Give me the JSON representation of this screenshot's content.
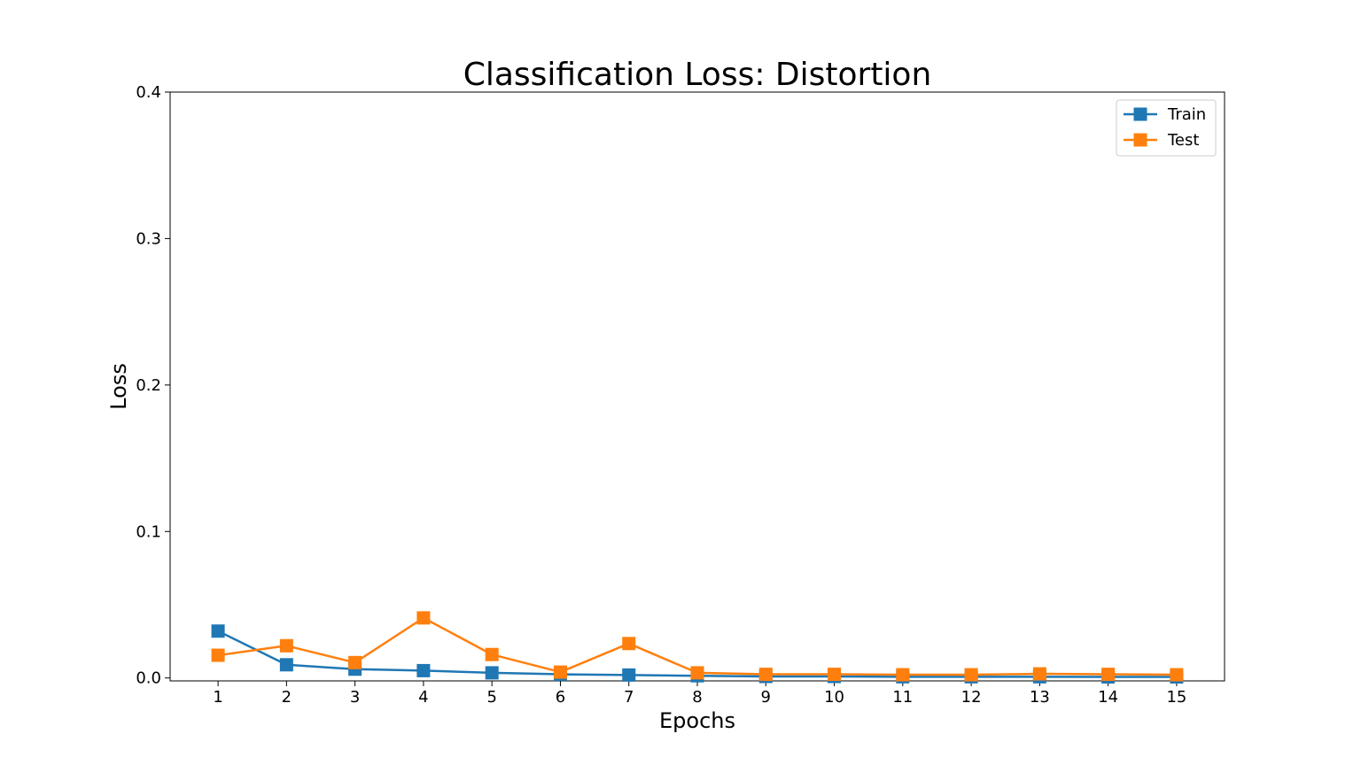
{
  "chart_data": {
    "type": "line",
    "title": "Classification Loss: Distortion",
    "xlabel": "Epochs",
    "ylabel": "Loss",
    "x": [
      1,
      2,
      3,
      4,
      5,
      6,
      7,
      8,
      9,
      10,
      11,
      12,
      13,
      14,
      15
    ],
    "xlim": [
      0.3,
      15.7
    ],
    "ylim": [
      -0.002,
      0.4
    ],
    "yticks": [
      0.0,
      0.1,
      0.2,
      0.3,
      0.4
    ],
    "ytick_labels": [
      "0.0",
      "0.1",
      "0.2",
      "0.3",
      "0.4"
    ],
    "grid": false,
    "legend_position": "top-right",
    "marker": "square",
    "series": [
      {
        "name": "Train",
        "color": "#1f77b4",
        "values": [
          0.032,
          0.009,
          0.006,
          0.005,
          0.0035,
          0.0025,
          0.002,
          0.0015,
          0.001,
          0.001,
          0.0008,
          0.0008,
          0.0008,
          0.0007,
          0.0007
        ]
      },
      {
        "name": "Test",
        "color": "#ff7f0e",
        "values": [
          0.0155,
          0.022,
          0.0105,
          0.041,
          0.016,
          0.004,
          0.0235,
          0.0035,
          0.0025,
          0.0025,
          0.0022,
          0.0022,
          0.0028,
          0.0025,
          0.0022
        ]
      }
    ]
  }
}
